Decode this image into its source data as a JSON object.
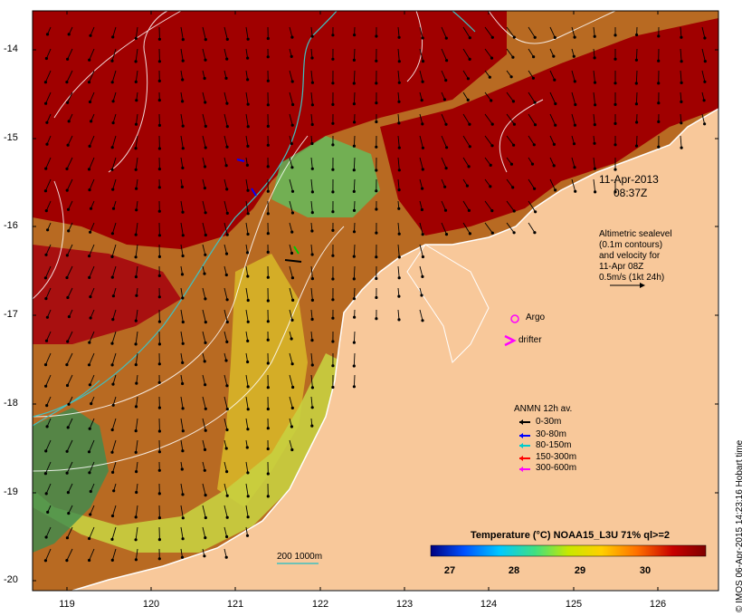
{
  "axes": {
    "lat_ticks": [
      "-14",
      "-15",
      "-16",
      "-17",
      "-18",
      "-19",
      "-20"
    ],
    "lon_ticks": [
      "119",
      "120",
      "121",
      "122",
      "123",
      "124",
      "125",
      "126"
    ],
    "lat_range": [
      -20.1,
      -13.6
    ],
    "lon_range": [
      118.65,
      126.7
    ]
  },
  "timestamp": {
    "date": "11-Apr-2013",
    "time": "08:37Z"
  },
  "altimetry_note": {
    "lines": [
      "Altimetric sealevel",
      "(0.1m contours)",
      "and velocity for",
      "11-Apr 08Z",
      "0.5m/s (1kt 24h)"
    ]
  },
  "markers": {
    "argo_label": "Argo",
    "drifter_label": "drifter"
  },
  "mooring_legend": {
    "title": "ANMN 12h av.",
    "items": [
      {
        "label": "0-30m",
        "color": "#000000"
      },
      {
        "label": "30-80m",
        "color": "#0000ff"
      },
      {
        "label": "80-150m",
        "color": "#00cccc"
      },
      {
        "label": "150-300m",
        "color": "#ff0000"
      },
      {
        "label": "300-600m",
        "color": "#ff00ff"
      }
    ]
  },
  "colorbar": {
    "title": "Temperature (°C) NOAA15_L3U 71% ql>=2",
    "ticks": [
      "27",
      "28",
      "29",
      "30"
    ],
    "range": [
      26.3,
      30.9
    ],
    "colors": [
      "#00007f",
      "#0050ff",
      "#00c8ff",
      "#40e080",
      "#c8e800",
      "#ffd000",
      "#ff7000",
      "#c80000",
      "#800000"
    ]
  },
  "isobath_legend": {
    "label": "200  1000m",
    "color": "#40c0c0"
  },
  "credit": "© IMOS 06-Apr-2015 14:23:16 Hobart time",
  "colors": {
    "land": "#f8c89a",
    "warm_sea": "#a00000",
    "mid_sea": "#c07020",
    "cool_sea": "#d8c030",
    "coast": "#ffffff"
  }
}
